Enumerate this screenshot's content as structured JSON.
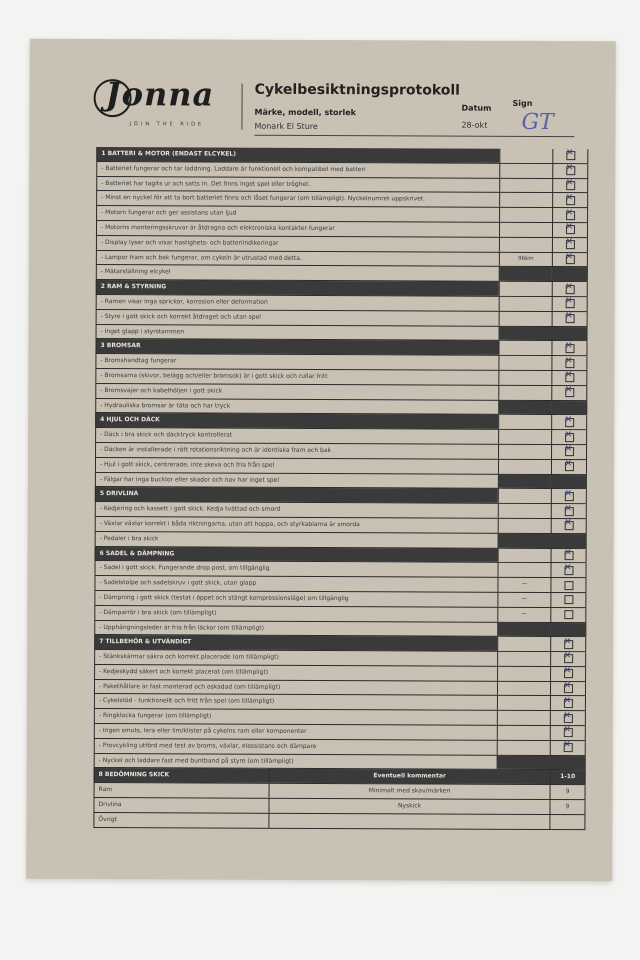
{
  "header": {
    "logo_text": "Jonna",
    "logo_tagline": "JOIN THE RIDE",
    "title": "Cykelbesiktningsprotokoll",
    "model_label": "Märke, modell, storlek",
    "model_value": "Monark El Sture",
    "date_label": "Datum",
    "date_value": "28-okt",
    "sign_label": "Sign",
    "signature": "GT"
  },
  "sections": [
    {
      "title": "1 BATTERI & MOTOR (ENDAST ELCYKEL)",
      "items": [
        "Batteriet fungerar och tar laddning. Laddare är funktionell och kompatibel med batteri",
        "Batteriet har tagits ur och satts in. Det finns inget spel eller tröghet.",
        "Minst en nyckel för att ta bort batteriet finns och låset fungerar (om tillämpligt). Nyckelnumret uppskrivet.",
        "Motorn fungerar och ger assistans utan ljud",
        "Motorns monteringsskruvar är åtdragna och elektroniska kontakter fungerar",
        "Display lyser och visar hastighets- och batteriindikeringar",
        "Lampor fram och bak fungerar, om cykeln är utrustad med detta.",
        "Mätarställning elcykel"
      ],
      "checks": [
        {
          "note": "",
          "checked": true
        },
        {
          "note": "",
          "checked": true
        },
        {
          "note": "",
          "checked": true
        },
        {
          "note": "",
          "checked": true
        },
        {
          "note": "",
          "checked": true
        },
        {
          "note": "",
          "checked": true
        },
        {
          "note": "",
          "checked": true
        },
        {
          "note": "96km",
          "checked": true
        }
      ]
    },
    {
      "title": "2 RAM & STYRNING",
      "items": [
        "Ramen visar inga sprickor, korrosion eller deformation",
        "Styre i gott skick och korrekt åtdraget och utan spel",
        "Inget glapp i styrstammen"
      ],
      "checks": [
        {
          "note": "",
          "checked": true
        },
        {
          "note": "",
          "checked": true
        },
        {
          "note": "",
          "checked": true
        }
      ]
    },
    {
      "title": "3 BROMSAR",
      "items": [
        "Bromshandtag fungerar",
        "Bromsarna (skivor, belägg och/eller bromsok) är i gott skick och rullar fritt",
        "Bromsvajer och kabelhöljen i gott skick",
        "Hydrauliska bromsar är täta och har tryck"
      ],
      "checks": [
        {
          "note": "",
          "checked": true
        },
        {
          "note": "",
          "checked": true
        },
        {
          "note": "",
          "checked": true
        },
        {
          "note": "",
          "checked": true
        }
      ]
    },
    {
      "title": "4 HJUL OCH DÄCK",
      "items": [
        "Däck i bra skick och däcktryck kontrollerat",
        "Däcken är installerade i rätt rotationsriktning och är identiska fram och bak",
        "Hjul i gott skick, centrerade, inte skeva och fria från spel",
        "Fälgar har inga bucklor eller skador och nav har inget spel"
      ],
      "checks": [
        {
          "note": "",
          "checked": true
        },
        {
          "note": "",
          "checked": true
        },
        {
          "note": "",
          "checked": true
        },
        {
          "note": "",
          "checked": true
        }
      ]
    },
    {
      "title": "5 DRIVLINA",
      "items": [
        "Kedjering och kassett i gott skick. Kedja tvättad och smord",
        "Växlar växlar korrekt i båda riktningarna, utan att hoppa, och styrkablarna är smorda",
        "Pedaler i bra skick"
      ],
      "checks": [
        {
          "note": "",
          "checked": true
        },
        {
          "note": "",
          "checked": true
        },
        {
          "note": "",
          "checked": true
        }
      ]
    },
    {
      "title": "6 SADEL & DÄMPNING",
      "items": [
        "Sadel i gott skick. Fungerande drop post, om tillgänglig",
        "Sadelstolpe och sadelskruv i gott skick, utan glapp",
        "Dämpning i gott skick (testat i öppet och stängt kompressionsläge) om tillgänglig",
        "Dämparrör i bra skick (om tillämpligt)",
        "Upphängningsleder är fria från läckor (om tillämpligt)"
      ],
      "checks": [
        {
          "note": "",
          "checked": true
        },
        {
          "note": "",
          "checked": true
        },
        {
          "note": "—",
          "checked": false
        },
        {
          "note": "—",
          "checked": false
        },
        {
          "note": "—",
          "checked": false
        }
      ]
    },
    {
      "title": "7 TILLBEHÖR & UTVÄNDIGT",
      "items": [
        "Stänkskärmar säkra och korrekt placerade (om tillämpligt)",
        "Kedjeskydd säkert och korrekt placerat (om tillämpligt)",
        "Pakethållare är fast monterad och oskadad (om tillämpligt)",
        "Cykelstöd - funktionellt och fritt från spel (om tillämpligt)",
        "Ringklocka fungerar (om tillämpligt)",
        "Ingen smuts, lera eller lim/klister på cykelns ram eller komponenter",
        "Provcykling utförd med test av broms, växlar, elassistans och dämpare",
        "Nyckel och laddare fast med buntband på styre (om tillämpligt)"
      ],
      "checks": [
        {
          "note": "",
          "checked": true
        },
        {
          "note": "",
          "checked": true
        },
        {
          "note": "",
          "checked": true
        },
        {
          "note": "",
          "checked": true
        },
        {
          "note": "",
          "checked": true
        },
        {
          "note": "",
          "checked": true
        },
        {
          "note": "",
          "checked": true
        },
        {
          "note": "",
          "checked": true
        }
      ]
    }
  ],
  "assessment": {
    "title": "8 BEDÖMNING SKICK",
    "comment_header": "Eventuell kommentar",
    "score_header": "1-10",
    "rows": [
      {
        "label": "Ram",
        "comment": "Minimalt med skav/märken",
        "score": "9"
      },
      {
        "label": "Drivlina",
        "comment": "Nyskick",
        "score": "9"
      },
      {
        "label": "Övrigt",
        "comment": "",
        "score": ""
      }
    ]
  }
}
